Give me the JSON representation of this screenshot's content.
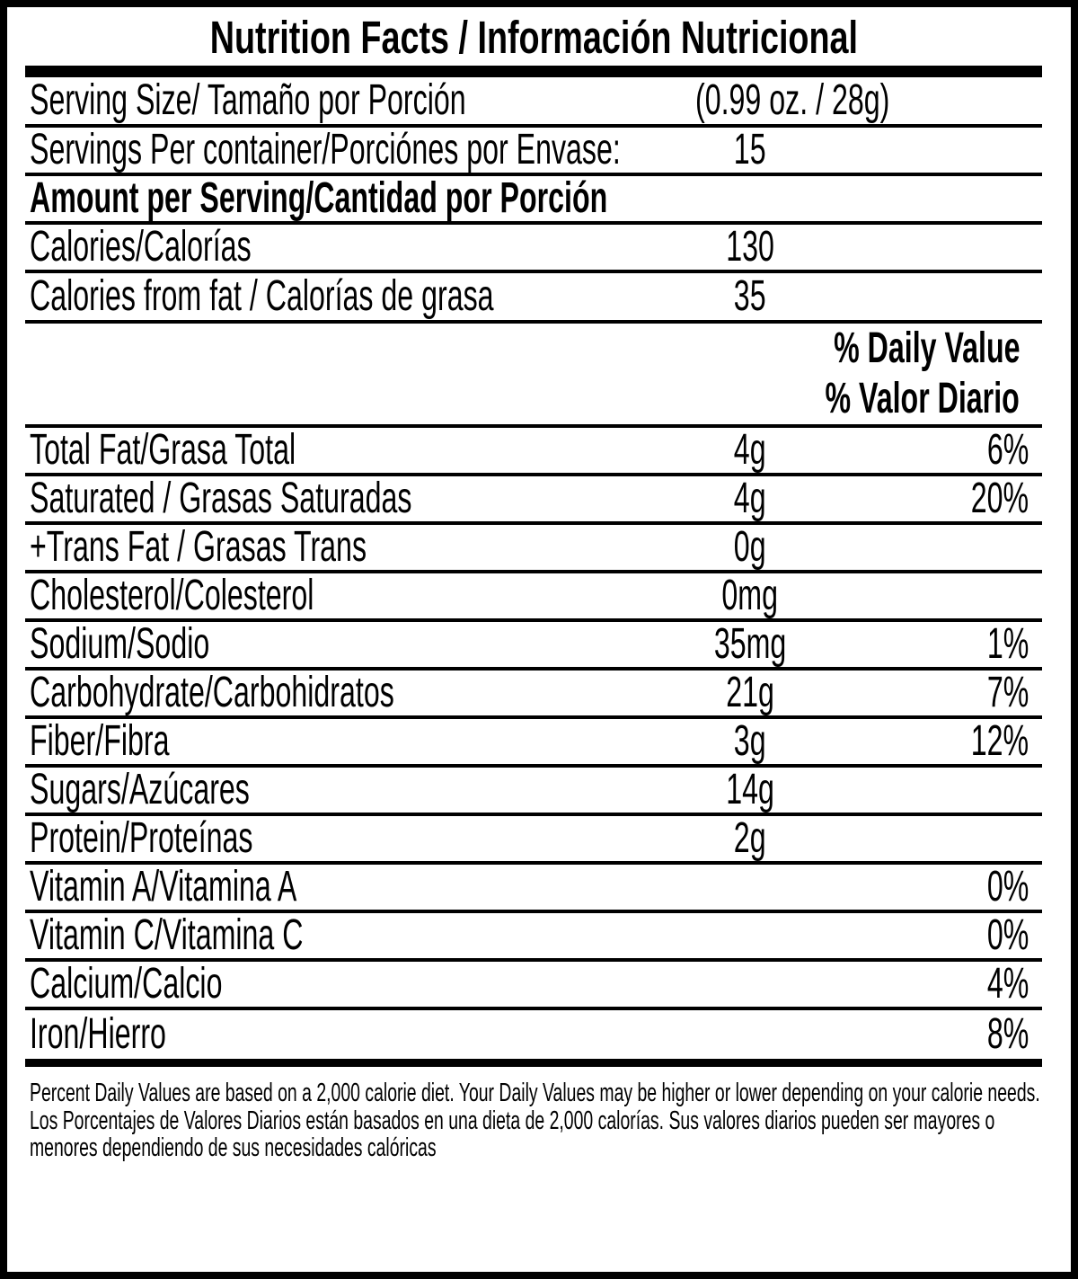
{
  "label": {
    "title": "Nutrition Facts / Información Nutricional",
    "serving_size": {
      "label": "Serving Size/ Tamaño por Porción",
      "value": "(0.99 oz. / 28g)"
    },
    "servings_per_container": {
      "label": "Servings Per container/Porciónes por Envase:",
      "value": "15"
    },
    "amount_heading": "Amount per Serving/Cantidad por Porción",
    "calories": {
      "label": "Calories/Calorías",
      "value": "130"
    },
    "calories_from_fat": {
      "label": "Calories from fat / Calorías de grasa",
      "value": "35"
    },
    "daily_value_header": {
      "line1": "% Daily Value",
      "line2": "% Valor Diario"
    },
    "nutrients": [
      {
        "label": "Total Fat/Grasa Total",
        "amount": "4g",
        "dv": "6%"
      },
      {
        "label": "Saturated / Grasas Saturadas",
        "amount": "4g",
        "dv": "20%"
      },
      {
        "label": "+Trans Fat / Grasas Trans",
        "amount": "0g",
        "dv": ""
      },
      {
        "label": "Cholesterol/Colesterol",
        "amount": "0mg",
        "dv": ""
      },
      {
        "label": "Sodium/Sodio",
        "amount": "35mg",
        "dv": "1%"
      },
      {
        "label": "Carbohydrate/Carbohidratos",
        "amount": "21g",
        "dv": "7%"
      },
      {
        "label": "Fiber/Fibra",
        "amount": "3g",
        "dv": "12%"
      },
      {
        "label": "Sugars/Azúcares",
        "amount": "14g",
        "dv": ""
      },
      {
        "label": "Protein/Proteínas",
        "amount": "2g",
        "dv": ""
      },
      {
        "label": "Vitamin A/Vitamina A",
        "amount": "",
        "dv": "0%"
      },
      {
        "label": "Vitamin C/Vitamina C",
        "amount": "",
        "dv": "0%"
      },
      {
        "label": "Calcium/Calcio",
        "amount": "",
        "dv": "4%"
      },
      {
        "label": "Iron/Hierro",
        "amount": "",
        "dv": "8%"
      }
    ],
    "footnotes": [
      "Percent Daily Values are based on a 2,000 calorie diet. Your Daily Values may be higher or lower depending on your calorie needs.",
      "Los Porcentajes de Valores Diarios están basados en una dieta de 2,000 calorías. Sus valores diarios pueden ser mayores o menores dependiendo de sus necesidades calóricas"
    ],
    "colors": {
      "ink": "#000000",
      "background": "#ffffff"
    }
  }
}
